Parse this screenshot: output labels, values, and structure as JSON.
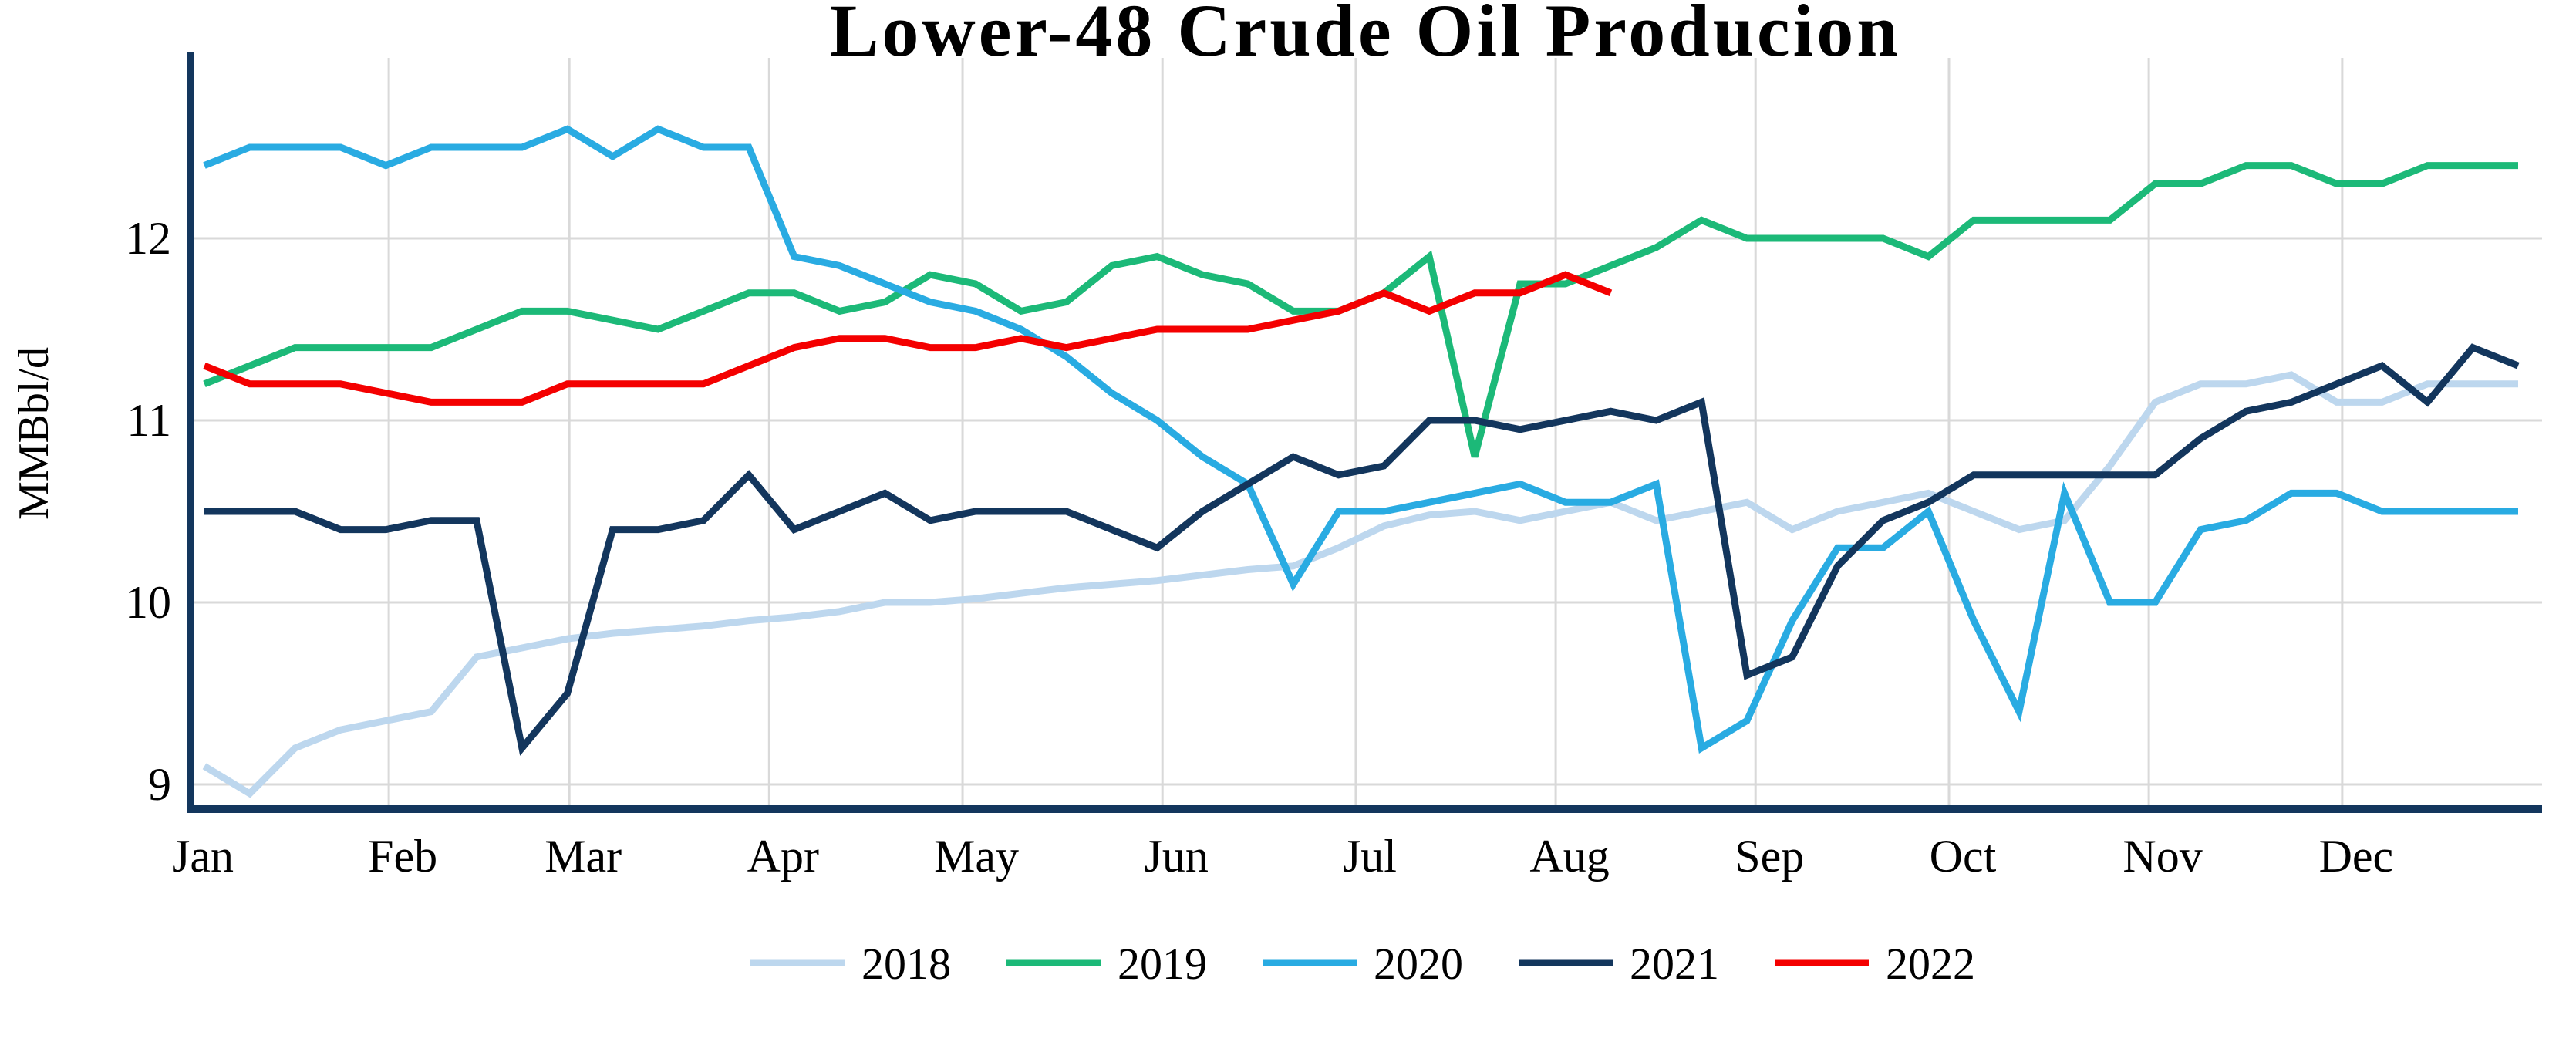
{
  "page": {
    "background_color": "#FFFFFF",
    "text_color": "#000000"
  },
  "chart_data": {
    "type": "line",
    "title": "Lower-48 Crude Oil Producion",
    "xlabel": "",
    "ylabel": "MMBbl/d",
    "x_resolution": "weekly (52 points per year, Jan through Dec)",
    "x_tick_labels": [
      "Jan",
      "Feb",
      "Mar",
      "Apr",
      "May",
      "Jun",
      "Jul",
      "Aug",
      "Sep",
      "Oct",
      "Nov",
      "Dec"
    ],
    "month_day_offsets": [
      0,
      31,
      59,
      90,
      120,
      151,
      181,
      212,
      243,
      273,
      304,
      334
    ],
    "days_in_year": 365,
    "y_ticks": [
      12,
      11,
      10,
      9
    ],
    "ylim": [
      8.85,
      13.0
    ],
    "grid": "on",
    "grid_color": "#D9D9D9",
    "axis_color": "#13365D",
    "legend_position": "bottom-center",
    "series": [
      {
        "name": "2018",
        "color": "#BDD7EE",
        "values": [
          9.1,
          8.95,
          9.2,
          9.3,
          9.35,
          9.4,
          9.7,
          9.75,
          9.8,
          9.83,
          9.85,
          9.87,
          9.9,
          9.92,
          9.95,
          10.0,
          10.0,
          10.02,
          10.05,
          10.08,
          10.1,
          10.12,
          10.15,
          10.18,
          10.2,
          10.3,
          10.42,
          10.48,
          10.5,
          10.45,
          10.5,
          10.55,
          10.45,
          10.5,
          10.55,
          10.4,
          10.5,
          10.55,
          10.6,
          10.5,
          10.4,
          10.45,
          10.75,
          11.1,
          11.2,
          11.2,
          11.25,
          11.1,
          11.1,
          11.2,
          11.2,
          11.2
        ]
      },
      {
        "name": "2019",
        "color": "#1CB978",
        "values": [
          11.2,
          11.3,
          11.4,
          11.4,
          11.4,
          11.4,
          11.5,
          11.6,
          11.6,
          11.55,
          11.5,
          11.6,
          11.7,
          11.7,
          11.6,
          11.65,
          11.8,
          11.75,
          11.6,
          11.65,
          11.85,
          11.9,
          11.8,
          11.75,
          11.6,
          11.6,
          11.7,
          11.9,
          10.8,
          11.75,
          11.75,
          11.85,
          11.95,
          12.1,
          12.0,
          12.0,
          12.0,
          12.0,
          11.9,
          12.1,
          12.1,
          12.1,
          12.1,
          12.3,
          12.3,
          12.4,
          12.4,
          12.3,
          12.3,
          12.4,
          12.4,
          12.4
        ]
      },
      {
        "name": "2020",
        "color": "#29ABE2",
        "values": [
          12.4,
          12.5,
          12.5,
          12.5,
          12.4,
          12.5,
          12.5,
          12.5,
          12.6,
          12.45,
          12.6,
          12.5,
          12.5,
          11.9,
          11.85,
          11.75,
          11.65,
          11.6,
          11.5,
          11.35,
          11.15,
          11.0,
          10.8,
          10.65,
          10.1,
          10.5,
          10.5,
          10.55,
          10.6,
          10.65,
          10.55,
          10.55,
          10.65,
          9.2,
          9.35,
          9.9,
          10.3,
          10.3,
          10.5,
          9.9,
          9.4,
          10.6,
          10.0,
          10.0,
          10.4,
          10.45,
          10.6,
          10.6,
          10.5,
          10.5,
          10.5,
          10.5
        ]
      },
      {
        "name": "2021",
        "color": "#13365D",
        "values": [
          10.5,
          10.5,
          10.5,
          10.4,
          10.4,
          10.45,
          10.45,
          9.2,
          9.5,
          10.4,
          10.4,
          10.45,
          10.7,
          10.4,
          10.5,
          10.6,
          10.45,
          10.5,
          10.5,
          10.5,
          10.4,
          10.3,
          10.5,
          10.65,
          10.8,
          10.7,
          10.75,
          11.0,
          11.0,
          10.95,
          11.0,
          11.05,
          11.0,
          11.1,
          9.6,
          9.7,
          10.2,
          10.45,
          10.55,
          10.7,
          10.7,
          10.7,
          10.7,
          10.7,
          10.9,
          11.05,
          11.1,
          11.2,
          11.3,
          11.1,
          11.4,
          11.3
        ]
      },
      {
        "name": "2022",
        "color": "#F40000",
        "values": [
          11.3,
          11.2,
          11.2,
          11.2,
          11.15,
          11.1,
          11.1,
          11.1,
          11.2,
          11.2,
          11.2,
          11.2,
          11.3,
          11.4,
          11.45,
          11.45,
          11.4,
          11.4,
          11.45,
          11.4,
          11.45,
          11.5,
          11.5,
          11.5,
          11.55,
          11.6,
          11.7,
          11.6,
          11.7,
          11.7,
          11.8,
          11.7,
          null,
          null,
          null,
          null,
          null,
          null,
          null,
          null,
          null,
          null,
          null,
          null,
          null,
          null,
          null,
          null,
          null,
          null,
          null,
          null
        ]
      }
    ]
  }
}
